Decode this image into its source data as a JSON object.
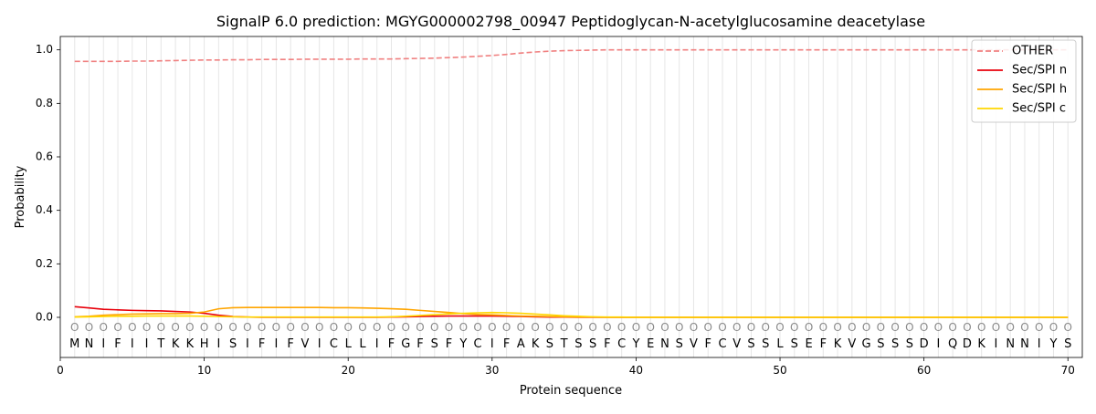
{
  "chart_data": {
    "type": "line",
    "title": "SignalP 6.0 prediction: MGYG000002798_00947 Peptidoglycan-N-acetylglucosamine deacetylase",
    "xlabel": "Protein sequence",
    "ylabel": "Probability",
    "xlim": [
      0,
      71
    ],
    "ylim": [
      -0.15,
      1.05
    ],
    "xticks": [
      0,
      10,
      20,
      30,
      40,
      50,
      60,
      70
    ],
    "yticks": [
      0.0,
      0.2,
      0.4,
      0.6,
      0.8,
      1.0
    ],
    "ytick_labels": [
      "0.0",
      "0.2",
      "0.4",
      "0.6",
      "0.8",
      "1.0"
    ],
    "legend_position": "top-right",
    "grid": "vertical lines at each residue",
    "sequence": [
      "M",
      "N",
      "I",
      "F",
      "I",
      "I",
      "T",
      "K",
      "K",
      "H",
      "I",
      "S",
      "I",
      "F",
      "I",
      "F",
      "V",
      "I",
      "C",
      "L",
      "L",
      "I",
      "F",
      "G",
      "F",
      "S",
      "F",
      "Y",
      "C",
      "I",
      "F",
      "A",
      "K",
      "S",
      "T",
      "S",
      "S",
      "F",
      "C",
      "Y",
      "E",
      "N",
      "S",
      "V",
      "F",
      "C",
      "V",
      "S",
      "S",
      "L",
      "S",
      "E",
      "F",
      "K",
      "V",
      "G",
      "S",
      "S",
      "S",
      "D",
      "I",
      "Q",
      "D",
      "K",
      "I",
      "N",
      "N",
      "I",
      "Y",
      "S"
    ],
    "region_labels": [
      "O",
      "O",
      "O",
      "O",
      "O",
      "O",
      "O",
      "O",
      "O",
      "O",
      "O",
      "O",
      "O",
      "O",
      "O",
      "O",
      "O",
      "O",
      "O",
      "O",
      "O",
      "O",
      "O",
      "O",
      "O",
      "O",
      "O",
      "O",
      "O",
      "O",
      "O",
      "O",
      "O",
      "O",
      "O",
      "O",
      "O",
      "O",
      "O",
      "O",
      "O",
      "O",
      "O",
      "O",
      "O",
      "O",
      "O",
      "O",
      "O",
      "O",
      "O",
      "O",
      "O",
      "O",
      "O",
      "O",
      "O",
      "O",
      "O",
      "O",
      "O",
      "O",
      "O",
      "O",
      "O",
      "O",
      "O",
      "O",
      "O",
      "O"
    ],
    "series": [
      {
        "name": "OTHER",
        "color": "#f08080",
        "dash": "dashed",
        "values": [
          0.957,
          0.957,
          0.957,
          0.957,
          0.958,
          0.958,
          0.959,
          0.96,
          0.961,
          0.962,
          0.962,
          0.963,
          0.963,
          0.964,
          0.964,
          0.964,
          0.965,
          0.965,
          0.965,
          0.965,
          0.966,
          0.966,
          0.966,
          0.967,
          0.968,
          0.969,
          0.971,
          0.973,
          0.976,
          0.979,
          0.983,
          0.988,
          0.992,
          0.995,
          0.997,
          0.998,
          0.999,
          1.0,
          1.0,
          1.0,
          1.0,
          1.0,
          1.0,
          1.0,
          1.0,
          1.0,
          1.0,
          1.0,
          1.0,
          1.0,
          1.0,
          1.0,
          1.0,
          1.0,
          1.0,
          1.0,
          1.0,
          1.0,
          1.0,
          1.0,
          1.0,
          1.0,
          1.0,
          1.0,
          1.0,
          1.0,
          1.0,
          1.0,
          1.0,
          1.0
        ]
      },
      {
        "name": "Sec/SPI n",
        "color": "#e8000b",
        "dash": "solid",
        "values": [
          0.04,
          0.035,
          0.03,
          0.028,
          0.026,
          0.025,
          0.024,
          0.022,
          0.02,
          0.015,
          0.008,
          0.003,
          0.001,
          0.0,
          0.0,
          0.0,
          0.0,
          0.0,
          0.0,
          0.0,
          0.0,
          0.0,
          0.001,
          0.002,
          0.003,
          0.004,
          0.005,
          0.005,
          0.005,
          0.005,
          0.004,
          0.003,
          0.002,
          0.001,
          0.001,
          0.0,
          0.0,
          0.0,
          0.0,
          0.0,
          0.0,
          0.0,
          0.0,
          0.0,
          0.0,
          0.0,
          0.0,
          0.0,
          0.0,
          0.0,
          0.0,
          0.0,
          0.0,
          0.0,
          0.0,
          0.0,
          0.0,
          0.0,
          0.0,
          0.0,
          0.0,
          0.0,
          0.0,
          0.0,
          0.0,
          0.0,
          0.0,
          0.0,
          0.0,
          0.0
        ]
      },
      {
        "name": "Sec/SPI h",
        "color": "#ffa500",
        "dash": "solid",
        "values": [
          0.002,
          0.004,
          0.008,
          0.01,
          0.012,
          0.013,
          0.014,
          0.014,
          0.015,
          0.02,
          0.032,
          0.036,
          0.037,
          0.037,
          0.037,
          0.037,
          0.037,
          0.037,
          0.036,
          0.036,
          0.035,
          0.034,
          0.032,
          0.03,
          0.026,
          0.022,
          0.018,
          0.014,
          0.011,
          0.009,
          0.007,
          0.005,
          0.004,
          0.003,
          0.002,
          0.001,
          0.001,
          0.0,
          0.0,
          0.0,
          0.0,
          0.0,
          0.0,
          0.0,
          0.0,
          0.0,
          0.0,
          0.0,
          0.0,
          0.0,
          0.0,
          0.0,
          0.0,
          0.0,
          0.0,
          0.0,
          0.0,
          0.0,
          0.0,
          0.0,
          0.0,
          0.0,
          0.0,
          0.0,
          0.0,
          0.0,
          0.0,
          0.0,
          0.0,
          0.0
        ]
      },
      {
        "name": "Sec/SPI c",
        "color": "#ffd700",
        "dash": "solid",
        "values": [
          0.001,
          0.002,
          0.003,
          0.004,
          0.004,
          0.005,
          0.005,
          0.005,
          0.005,
          0.004,
          0.003,
          0.002,
          0.001,
          0.001,
          0.001,
          0.001,
          0.001,
          0.001,
          0.001,
          0.001,
          0.001,
          0.001,
          0.002,
          0.004,
          0.007,
          0.01,
          0.013,
          0.015,
          0.017,
          0.018,
          0.017,
          0.015,
          0.012,
          0.009,
          0.006,
          0.004,
          0.002,
          0.001,
          0.001,
          0.0,
          0.0,
          0.0,
          0.0,
          0.0,
          0.0,
          0.0,
          0.0,
          0.0,
          0.0,
          0.0,
          0.0,
          0.0,
          0.0,
          0.0,
          0.0,
          0.0,
          0.0,
          0.0,
          0.0,
          0.0,
          0.0,
          0.0,
          0.0,
          0.0,
          0.0,
          0.0,
          0.0,
          0.0,
          0.0,
          0.0
        ]
      }
    ]
  }
}
